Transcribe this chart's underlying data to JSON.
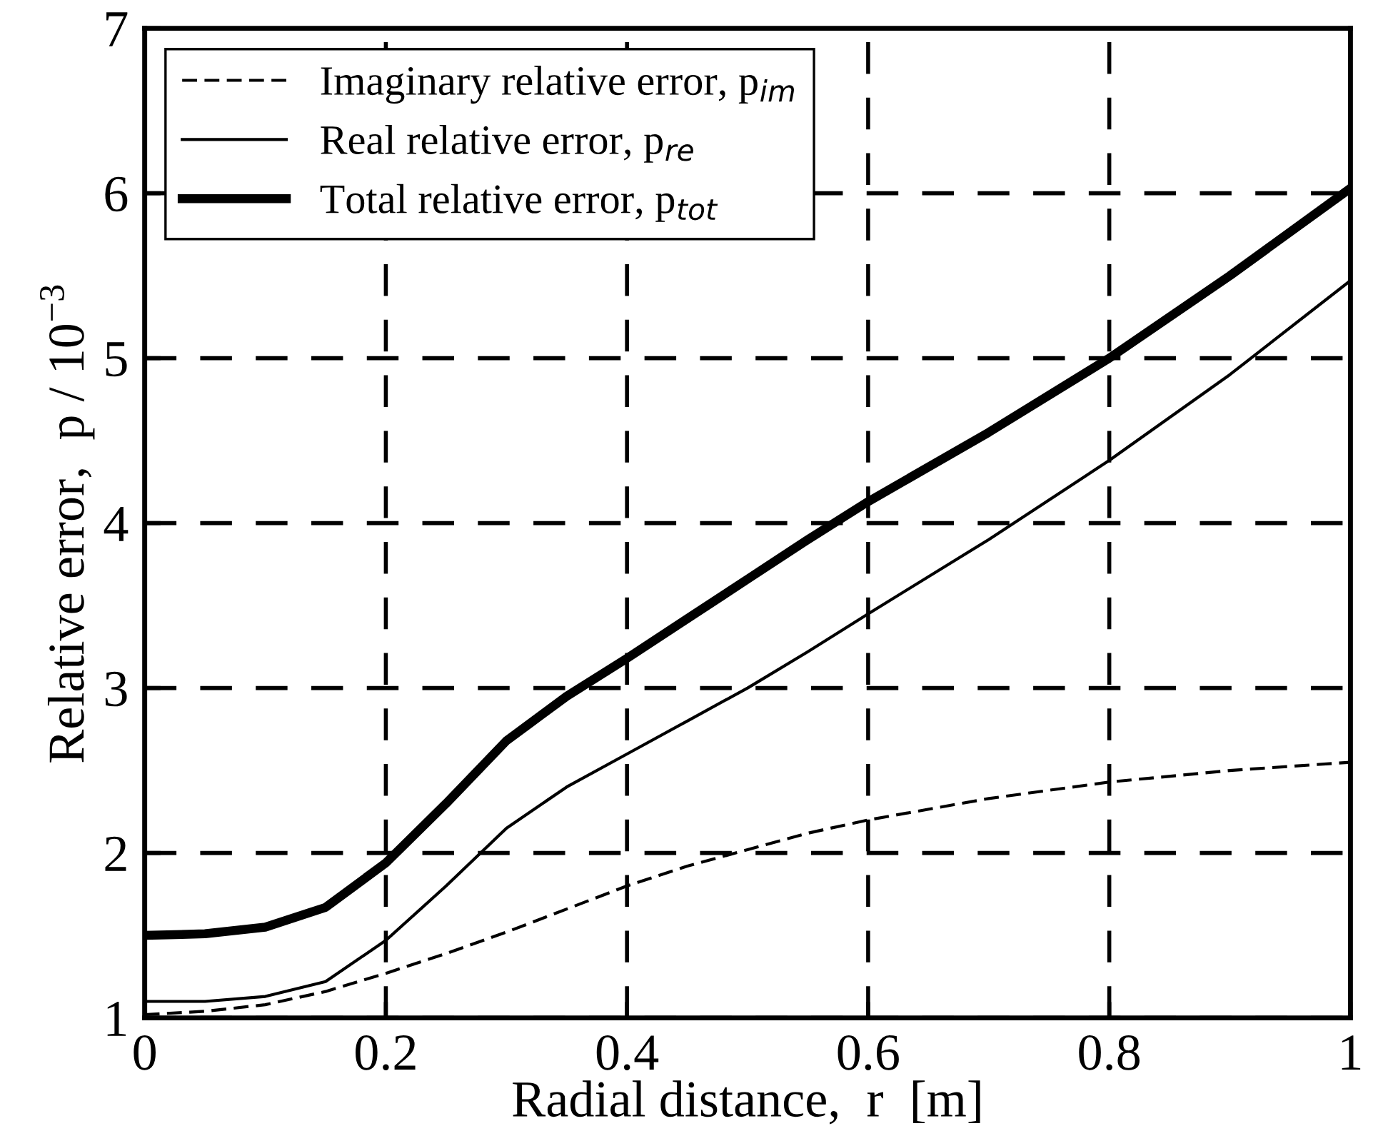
{
  "chart_data": {
    "type": "line",
    "xlabel": "Radial distance,  r  [m]",
    "ylabel": "Relative error,  p / 10$^{−3}$",
    "x": [
      0,
      0.05,
      0.1,
      0.15,
      0.2,
      0.25,
      0.3,
      0.35,
      0.4,
      0.45,
      0.5,
      0.55,
      0.6,
      0.7,
      0.8,
      0.9,
      1.0
    ],
    "series": [
      {
        "name": "Imaginary relative error, p$_{im}$",
        "color": "#000000",
        "line_style": "dashed",
        "values": [
          1.02,
          1.04,
          1.08,
          1.16,
          1.27,
          1.39,
          1.52,
          1.66,
          1.8,
          1.92,
          2.02,
          2.12,
          2.2,
          2.33,
          2.43,
          2.5,
          2.55
        ]
      },
      {
        "name": "Real relative error, p$_{re}$",
        "color": "#000000",
        "line_style": "solid",
        "values": [
          1.1,
          1.1,
          1.13,
          1.22,
          1.47,
          1.8,
          2.15,
          2.4,
          2.6,
          2.8,
          3.0,
          3.22,
          3.45,
          3.9,
          4.38,
          4.9,
          5.47
        ]
      },
      {
        "name": "Total relative error, p$_{tot}$",
        "color": "#000000",
        "line_style": "solid",
        "values": [
          1.5,
          1.51,
          1.55,
          1.67,
          1.94,
          2.3,
          2.68,
          2.95,
          3.18,
          3.42,
          3.66,
          3.9,
          4.13,
          4.55,
          5.0,
          5.5,
          6.03
        ]
      }
    ],
    "xlim": [
      0,
      1
    ],
    "xticks": [
      0,
      0.2,
      0.4,
      0.6,
      0.8,
      1
    ],
    "ylim": [
      1,
      7
    ],
    "yticks": [
      1,
      2,
      3,
      4,
      5,
      6,
      7
    ],
    "grid": true,
    "legend": "top left",
    "marker": "none"
  }
}
